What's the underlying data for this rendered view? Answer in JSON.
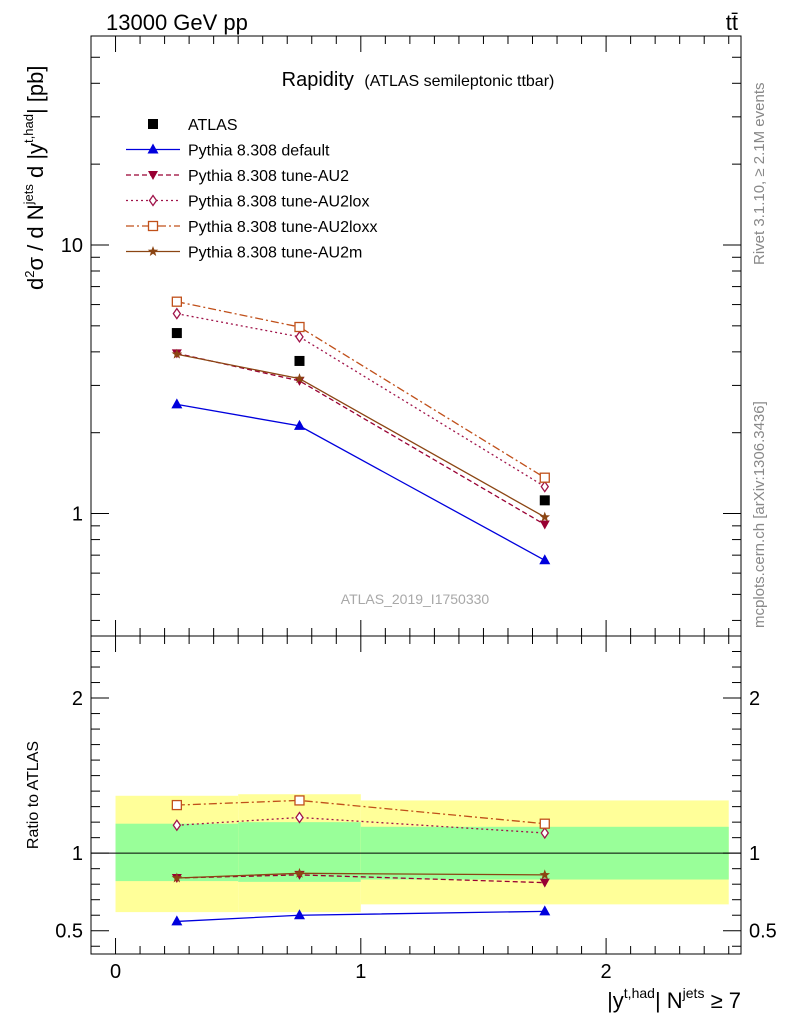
{
  "header": {
    "energy_label": "13000 GeV pp",
    "process_label": "tt̄"
  },
  "side_labels": {
    "rivet": "Rivet 3.1.10, ≥ 2.1M events",
    "mcplots": "mcplots.cern.ch [arXiv:1306.3436]"
  },
  "title": {
    "main": "Rapidity",
    "sub": "(ATLAS semileptonic ttbar)"
  },
  "watermark": "ATLAS_2019_I1750330",
  "ylabel_main": "d²σ / d N^jets d |y^t,had| [pb]",
  "ylabel_ratio": "Ratio to ATLAS",
  "xlabel": "|y^t,had| N^jets ≥ 7",
  "colors": {
    "atlas": "#000000",
    "default": "#0000dd",
    "au2": "#990033",
    "au2lox": "#a0144a",
    "au2loxx": "#c0501a",
    "au2m": "#8b4513",
    "band_inner": "#99ff99",
    "band_outer": "#ffff99"
  },
  "chart_data": [
    {
      "type": "line",
      "panel": "main",
      "title": "Rapidity (ATLAS semileptonic ttbar)",
      "ylabel": "d²σ / d N^jets d |y^t,had| [pb]",
      "yscale": "log",
      "ylim": [
        0.35,
        60
      ],
      "xlim": [
        -0.1,
        2.55
      ],
      "x": [
        0.25,
        0.75,
        1.75
      ],
      "y_ticks": [
        {
          "value": 1,
          "label": "1"
        },
        {
          "value": 10,
          "label": "10"
        }
      ],
      "series": [
        {
          "name": "ATLAS",
          "key": "atlas",
          "style": "data",
          "values": [
            4.7,
            3.7,
            1.12
          ]
        },
        {
          "name": "Pythia 8.308 default",
          "key": "default",
          "style": "solid",
          "marker": "triangle-up",
          "values": [
            2.55,
            2.12,
            0.67
          ]
        },
        {
          "name": "Pythia 8.308 tune-AU2",
          "key": "au2",
          "style": "dashed",
          "marker": "triangle-down",
          "values": [
            3.95,
            3.12,
            0.91
          ]
        },
        {
          "name": "Pythia 8.308 tune-AU2lox",
          "key": "au2lox",
          "style": "dotted",
          "marker": "diamond-open",
          "values": [
            5.55,
            4.55,
            1.26
          ]
        },
        {
          "name": "Pythia 8.308 tune-AU2loxx",
          "key": "au2loxx",
          "style": "dashdot",
          "marker": "square-open",
          "values": [
            6.15,
            4.95,
            1.36
          ]
        },
        {
          "name": "Pythia 8.308 tune-AU2m",
          "key": "au2m",
          "style": "solid",
          "marker": "star",
          "values": [
            3.92,
            3.18,
            0.97
          ]
        }
      ]
    },
    {
      "type": "line",
      "panel": "ratio",
      "ylabel": "Ratio to ATLAS",
      "xlabel": "|y^t,had| N^jets ≥ 7",
      "ylim": [
        0.35,
        2.4
      ],
      "xlim": [
        -0.1,
        2.55
      ],
      "x": [
        0.25,
        0.75,
        1.75
      ],
      "x_ticks": [
        {
          "value": 0,
          "label": "0"
        },
        {
          "value": 1,
          "label": "1"
        },
        {
          "value": 2,
          "label": "2"
        }
      ],
      "y_ticks": [
        {
          "value": 0.5,
          "label": "0.5"
        },
        {
          "value": 1,
          "label": "1"
        },
        {
          "value": 2,
          "label": "2"
        }
      ],
      "bands": [
        {
          "x_range": [
            0,
            0.5
          ],
          "inner": [
            0.82,
            1.19
          ],
          "outer": [
            0.62,
            1.37
          ]
        },
        {
          "x_range": [
            0.5,
            1.0
          ],
          "inner": [
            0.815,
            1.2
          ],
          "outer": [
            0.62,
            1.38
          ]
        },
        {
          "x_range": [
            1.0,
            2.5
          ],
          "inner": [
            0.83,
            1.17
          ],
          "outer": [
            0.67,
            1.34
          ]
        }
      ],
      "series": [
        {
          "name": "Pythia 8.308 default",
          "key": "default",
          "values": [
            0.56,
            0.6,
            0.625
          ]
        },
        {
          "name": "Pythia 8.308 tune-AU2",
          "key": "au2",
          "values": [
            0.84,
            0.86,
            0.81
          ]
        },
        {
          "name": "Pythia 8.308 tune-AU2lox",
          "key": "au2lox",
          "values": [
            1.18,
            1.23,
            1.13
          ]
        },
        {
          "name": "Pythia 8.308 tune-AU2loxx",
          "key": "au2loxx",
          "values": [
            1.31,
            1.34,
            1.19
          ]
        },
        {
          "name": "Pythia 8.308 tune-AU2m",
          "key": "au2m",
          "values": [
            0.84,
            0.87,
            0.86
          ]
        }
      ]
    }
  ]
}
